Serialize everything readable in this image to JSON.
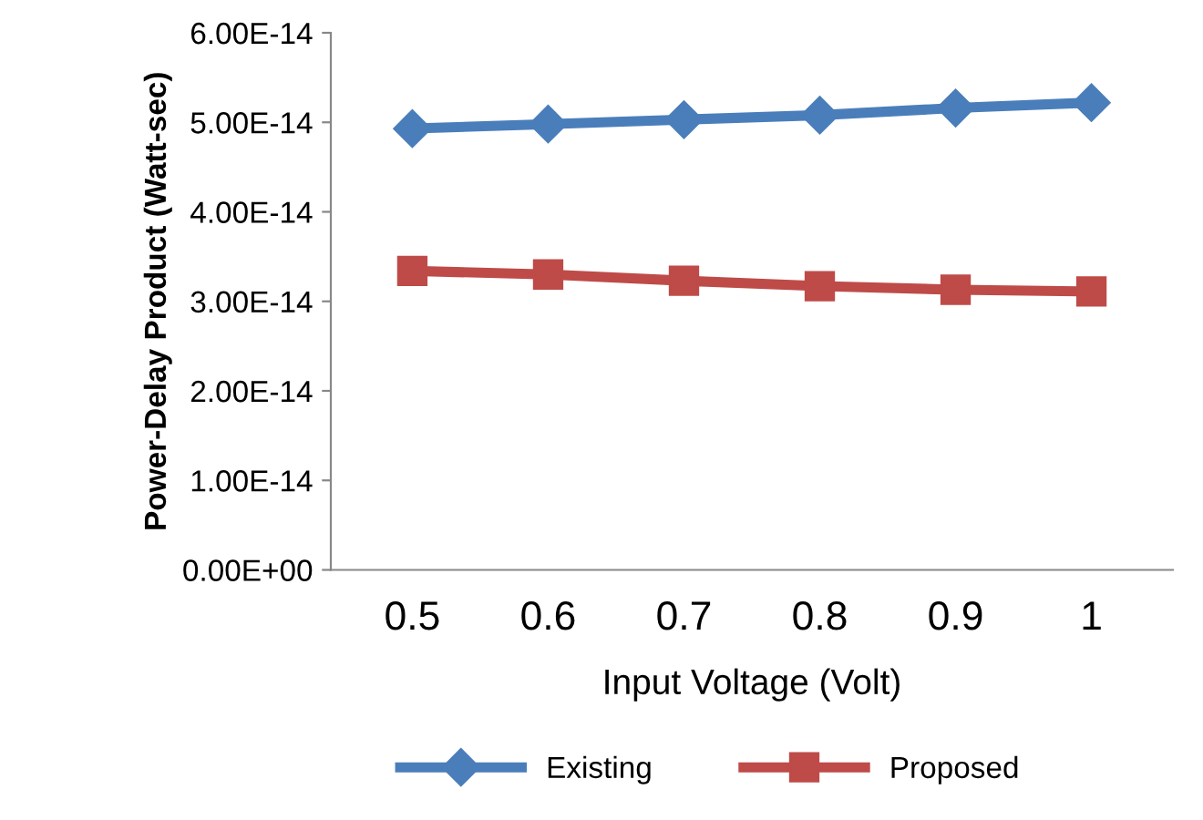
{
  "chart_data": {
    "type": "line",
    "xlabel": "Input Voltage (Volt)",
    "ylabel": "Power-Delay Product (Watt-sec)",
    "categories": [
      "0.5",
      "0.6",
      "0.7",
      "0.8",
      "0.9",
      "1"
    ],
    "series": [
      {
        "name": "Existing",
        "color": "#4a7ebb",
        "marker": "diamond",
        "values": [
          4.93e-14,
          4.98e-14,
          5.03e-14,
          5.08e-14,
          5.16e-14,
          5.22e-14
        ]
      },
      {
        "name": "Proposed",
        "color": "#be4b48",
        "marker": "square",
        "values": [
          3.34e-14,
          3.3e-14,
          3.23e-14,
          3.17e-14,
          3.13e-14,
          3.11e-14
        ]
      }
    ],
    "ylim": [
      0,
      6e-14
    ],
    "yticks": [
      {
        "value": 0,
        "label": "0.00E+00"
      },
      {
        "value": 1e-14,
        "label": "1.00E-14"
      },
      {
        "value": 2e-14,
        "label": "2.00E-14"
      },
      {
        "value": 3e-14,
        "label": "3.00E-14"
      },
      {
        "value": 4e-14,
        "label": "4.00E-14"
      },
      {
        "value": 5e-14,
        "label": "5.00E-14"
      },
      {
        "value": 6e-14,
        "label": "6.00E-14"
      }
    ],
    "grid": false,
    "legend": "bottom",
    "line_style": "solid"
  }
}
